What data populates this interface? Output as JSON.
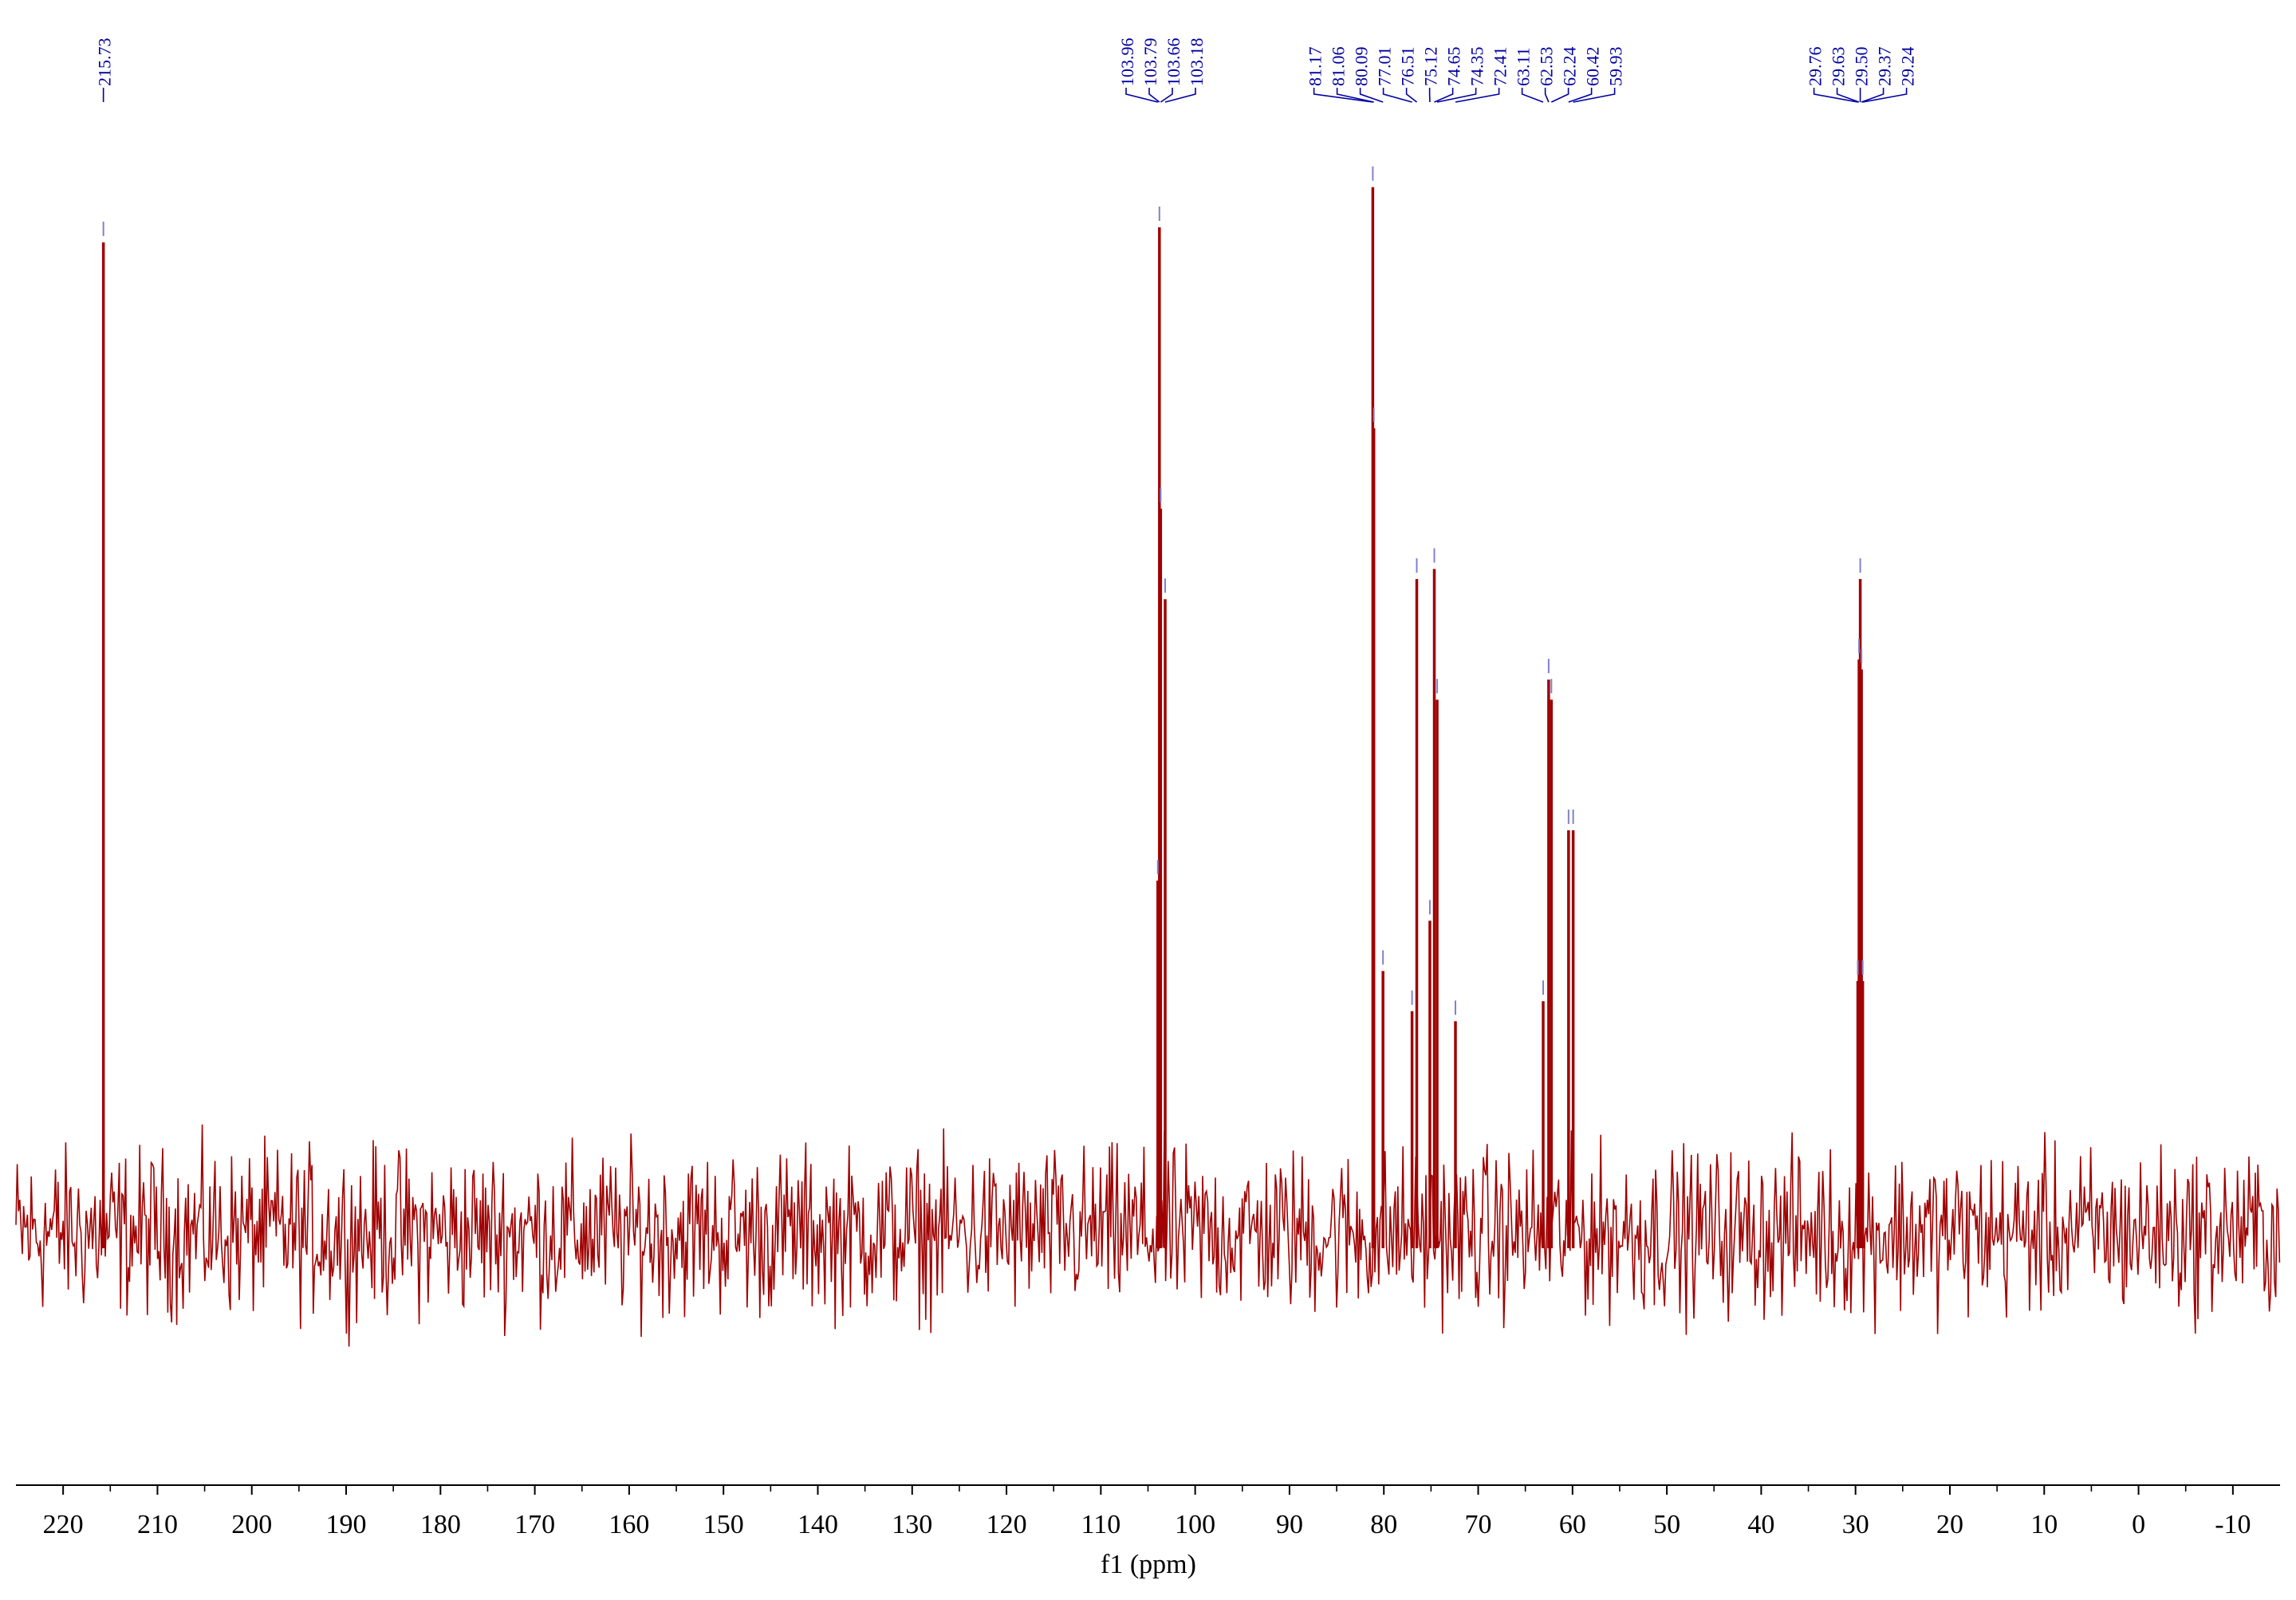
{
  "chart_data": {
    "type": "line",
    "title": "",
    "xlabel": "f1 (ppm)",
    "ylabel": "",
    "x_reversed": true,
    "xlim": [
      225,
      -15
    ],
    "ylim": [
      -12,
      100
    ],
    "grid": false,
    "x_ticks": [
      220,
      210,
      200,
      190,
      180,
      170,
      160,
      150,
      140,
      130,
      120,
      110,
      100,
      90,
      80,
      70,
      60,
      50,
      40,
      30,
      20,
      10,
      0,
      -10
    ],
    "noise_level": 4,
    "peaks": [
      {
        "ppm": 215.73,
        "height": 98.5
      },
      {
        "ppm": 103.96,
        "height": 35
      },
      {
        "ppm": 103.79,
        "height": 100
      },
      {
        "ppm": 103.66,
        "height": 72
      },
      {
        "ppm": 103.18,
        "height": 63
      },
      {
        "ppm": 81.17,
        "height": 104
      },
      {
        "ppm": 81.06,
        "height": 80
      },
      {
        "ppm": 80.09,
        "height": 26
      },
      {
        "ppm": 77.01,
        "height": 22
      },
      {
        "ppm": 76.51,
        "height": 65
      },
      {
        "ppm": 75.12,
        "height": 31
      },
      {
        "ppm": 74.65,
        "height": 66
      },
      {
        "ppm": 74.35,
        "height": 53
      },
      {
        "ppm": 72.41,
        "height": 21
      },
      {
        "ppm": 63.11,
        "height": 23
      },
      {
        "ppm": 62.53,
        "height": 55
      },
      {
        "ppm": 62.24,
        "height": 53
      },
      {
        "ppm": 60.42,
        "height": 40
      },
      {
        "ppm": 59.93,
        "height": 40
      },
      {
        "ppm": 29.76,
        "height": 25
      },
      {
        "ppm": 29.63,
        "height": 57
      },
      {
        "ppm": 29.5,
        "height": 65
      },
      {
        "ppm": 29.37,
        "height": 56
      },
      {
        "ppm": 29.24,
        "height": 25
      }
    ],
    "label_groups": [
      {
        "labels": [
          "215.73"
        ],
        "peaks": [
          215.73
        ]
      },
      {
        "labels": [
          "103.96",
          "103.79",
          "103.66",
          "103.18"
        ],
        "peaks": [
          103.96,
          103.79,
          103.66,
          103.18
        ]
      },
      {
        "labels": [
          "81.17",
          "81.06",
          "80.09",
          "77.01",
          "76.51",
          "75.12",
          "74.65",
          "74.35",
          "72.41",
          "63.11",
          "62.53",
          "62.24",
          "60.42",
          "59.93"
        ],
        "peaks": [
          81.17,
          81.06,
          80.09,
          77.01,
          76.51,
          75.12,
          74.65,
          74.35,
          72.41,
          63.11,
          62.53,
          62.24,
          60.42,
          59.93
        ]
      },
      {
        "labels": [
          "29.76",
          "29.63",
          "29.50",
          "29.37",
          "29.24"
        ],
        "peaks": [
          29.76,
          29.63,
          29.5,
          29.37,
          29.24
        ]
      }
    ],
    "colors": {
      "spectrum": "#a00000",
      "peak_labels": "#0000a0",
      "peak_markers": "#8080d0",
      "axis": "#000000"
    }
  }
}
